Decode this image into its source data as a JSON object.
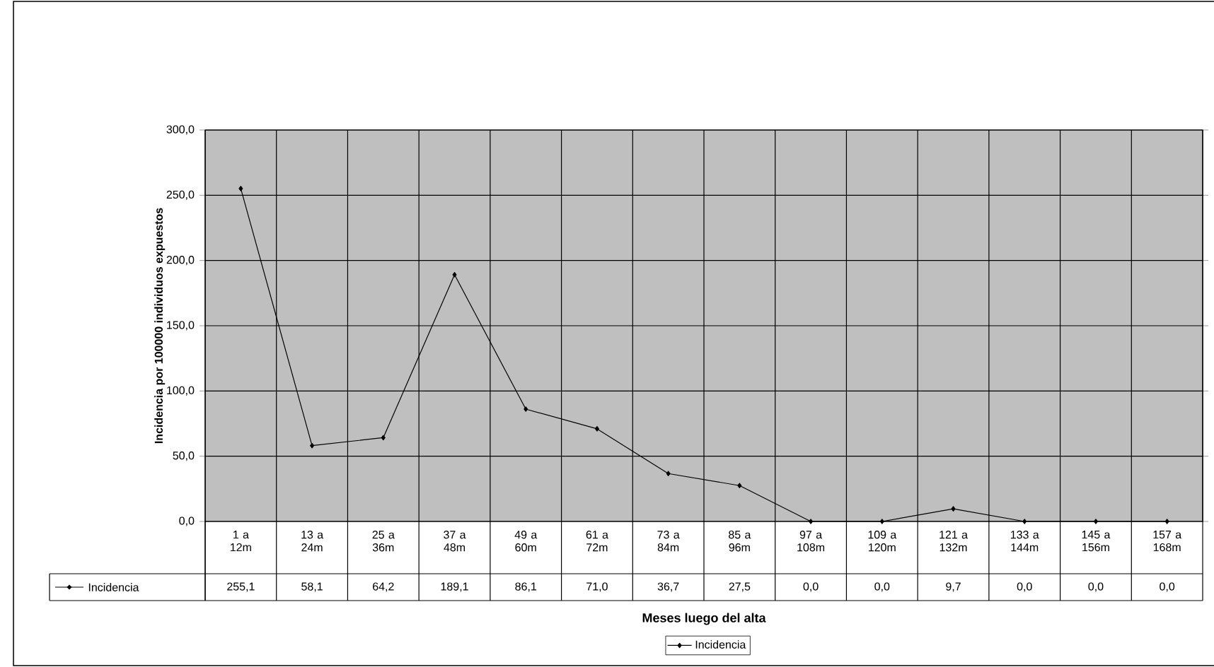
{
  "chart_data": {
    "type": "line",
    "xlabel": "Meses luego del alta",
    "ylabel": "Incidencia por 100000 individuos expuestos",
    "categories": [
      "1 a 12m",
      "13 a 24m",
      "25 a 36m",
      "37 a 48m",
      "49 a 60m",
      "61 a 72m",
      "73 a 84m",
      "85 a 96m",
      "97 a 108m",
      "109 a 120m",
      "121 a 132m",
      "133 a 144m",
      "145 a 156m",
      "157 a 168m"
    ],
    "series": [
      {
        "name": "Incidencia",
        "color": "#000000",
        "values": [
          255.1,
          58.1,
          64.2,
          189.1,
          86.1,
          71.0,
          36.7,
          27.5,
          0.0,
          0.0,
          9.7,
          0.0,
          0.0,
          0.0
        ],
        "value_labels": [
          "255,1",
          "58,1",
          "64,2",
          "189,1",
          "86,1",
          "71,0",
          "36,7",
          "27,5",
          "0,0",
          "0,0",
          "9,7",
          "0,0",
          "0,0",
          "0,0"
        ]
      }
    ],
    "ylim": [
      0,
      300
    ],
    "yticks": [
      {
        "value": 0,
        "label": "0,0"
      },
      {
        "value": 50,
        "label": "50,0"
      },
      {
        "value": 100,
        "label": "100,0"
      },
      {
        "value": 150,
        "label": "150,0"
      },
      {
        "value": 200,
        "label": "200,0"
      },
      {
        "value": 250,
        "label": "250,0"
      },
      {
        "value": 300,
        "label": "300,0"
      }
    ],
    "grid": true,
    "legend": "bottom",
    "marker": "diamond",
    "line_style": "solid"
  }
}
